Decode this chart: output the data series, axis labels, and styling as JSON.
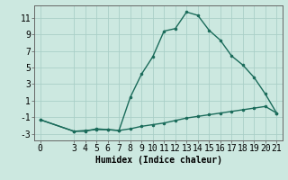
{
  "xlabel": "Humidex (Indice chaleur)",
  "background_color": "#cce8e0",
  "line_color": "#1a6b5a",
  "grid_color": "#aacfc8",
  "x_main": [
    0,
    3,
    4,
    5,
    6,
    7,
    8,
    9,
    10,
    11,
    12,
    13,
    14,
    15,
    16,
    17,
    18,
    19,
    20,
    21
  ],
  "y_main": [
    -1.3,
    -2.7,
    -2.7,
    -2.4,
    -2.5,
    -2.6,
    1.4,
    4.2,
    6.3,
    9.4,
    9.7,
    11.7,
    11.3,
    9.5,
    8.3,
    6.4,
    5.3,
    3.8,
    1.8,
    -0.5
  ],
  "x_ref": [
    0,
    3,
    4,
    5,
    6,
    7,
    8,
    9,
    10,
    11,
    12,
    13,
    14,
    15,
    16,
    17,
    18,
    19,
    20,
    21
  ],
  "y_ref": [
    -1.3,
    -2.7,
    -2.6,
    -2.5,
    -2.5,
    -2.6,
    -2.4,
    -2.1,
    -1.9,
    -1.7,
    -1.4,
    -1.1,
    -0.9,
    -0.7,
    -0.5,
    -0.3,
    -0.1,
    0.1,
    0.3,
    -0.5
  ],
  "xlim": [
    -0.5,
    21.5
  ],
  "ylim": [
    -3.8,
    12.5
  ],
  "yticks": [
    -3,
    -1,
    1,
    3,
    5,
    7,
    9,
    11
  ],
  "xticks": [
    0,
    3,
    4,
    5,
    6,
    7,
    8,
    9,
    10,
    11,
    12,
    13,
    14,
    15,
    16,
    17,
    18,
    19,
    20,
    21
  ],
  "marker": ".",
  "markersize": 3.5,
  "linewidth": 1.0,
  "fontsize_label": 7,
  "fontsize_tick": 7
}
